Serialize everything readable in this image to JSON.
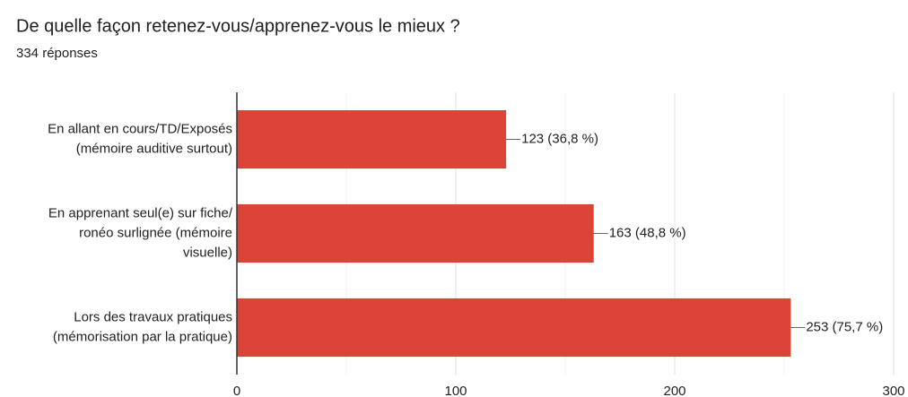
{
  "chart_data": {
    "type": "barh",
    "title": "De quelle façon retenez-vous/apprenez-vous le mieux ?",
    "subtitle": "334 réponses",
    "categories": [
      [
        "En allant en cours/TD/Exposés",
        "(mémoire auditive surtout)"
      ],
      [
        "En apprenant seul(e) sur fiche/",
        "ronéo surlignée (mémoire",
        "visuelle)"
      ],
      [
        "Lors des travaux pratiques",
        "(mémorisation par la pratique)"
      ]
    ],
    "values": [
      123,
      163,
      253
    ],
    "value_labels": [
      "123 (36,8 %)",
      "163 (48,8 %)",
      "253 (75,7 %)"
    ],
    "color": "#db4437",
    "xlim": [
      0,
      300
    ],
    "xticks": [
      0,
      100,
      200,
      300
    ],
    "minor_xticks": [
      50,
      150,
      250
    ],
    "grid": true
  }
}
